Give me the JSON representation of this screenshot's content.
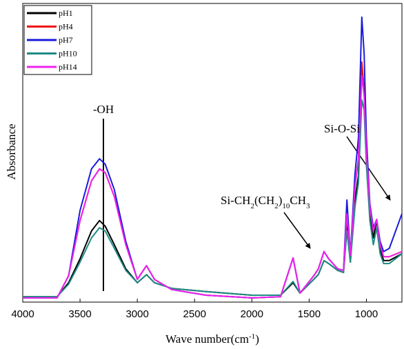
{
  "chart_data": {
    "type": "line",
    "x_label_parts": [
      "Wave number(cm",
      "-1",
      ")"
    ],
    "y_label": "Absorbance",
    "xlim": [
      4000,
      690
    ],
    "ylim": [
      0,
      100
    ],
    "xticks": [
      4000,
      3500,
      3000,
      2500,
      2000,
      1500,
      1000
    ],
    "legend": "top-left",
    "annotations": [
      {
        "parts": [
          "-OH"
        ]
      },
      {
        "parts": [
          "Si-CH",
          "2",
          "(CH",
          "2",
          ")",
          "10",
          "CH",
          "3"
        ]
      },
      {
        "parts": [
          "Si-O-Si"
        ]
      }
    ],
    "x": [
      4000,
      3700,
      3600,
      3500,
      3400,
      3330,
      3280,
      3200,
      3100,
      3000,
      2920,
      2850,
      2700,
      2400,
      2000,
      1750,
      1640,
      1580,
      1460,
      1420,
      1370,
      1330,
      1250,
      1200,
      1170,
      1140,
      1100,
      1070,
      1040,
      1020,
      1000,
      970,
      940,
      910,
      880,
      850,
      800,
      690
    ],
    "series": [
      {
        "name": "pH1",
        "color": "#000000",
        "values": [
          1.8,
          1.8,
          6.5,
          14.5,
          23.8,
          27.3,
          25.4,
          19.2,
          11.1,
          6.5,
          9.2,
          6.5,
          4.6,
          3.5,
          2.3,
          2.3,
          6.5,
          3,
          7.6,
          9.2,
          13.9,
          12.9,
          10.6,
          9.9,
          26.1,
          13.4,
          34.2,
          42.3,
          79.2,
          71.1,
          48,
          29.6,
          21.5,
          27.3,
          18,
          13.9,
          13.9,
          16.2
        ]
      },
      {
        "name": "pH4",
        "color": "#ee1111",
        "values": [
          1.4,
          1.4,
          8.8,
          27.3,
          40.6,
          44.6,
          43.4,
          35.3,
          19.2,
          7.6,
          12.2,
          7.6,
          4.2,
          2.3,
          1.4,
          1.8,
          14.8,
          3,
          8.8,
          11.1,
          16.9,
          14.5,
          11.1,
          10.6,
          29.6,
          15.7,
          38.8,
          48,
          80.4,
          71.1,
          50.3,
          31.9,
          23.8,
          27.7,
          19.2,
          15.2,
          15.2,
          16.9
        ]
      },
      {
        "name": "pH7",
        "color": "#1a1adc",
        "values": [
          1.4,
          1.4,
          8.8,
          30.7,
          44.6,
          48,
          46.2,
          37.6,
          20.3,
          7.6,
          12.2,
          7.6,
          4.2,
          2.3,
          1.4,
          1.8,
          14.8,
          3,
          8.8,
          11.1,
          16.9,
          14.5,
          11.1,
          10.6,
          34.2,
          15.7,
          43,
          55,
          95.4,
          83.1,
          55,
          33,
          24.9,
          27.7,
          20.3,
          16.9,
          18,
          29.6
        ]
      },
      {
        "name": "pH10",
        "color": "#1f8a84",
        "values": [
          1.8,
          1.8,
          6,
          13.4,
          21.5,
          24.9,
          23.8,
          18,
          10.6,
          6.5,
          9.2,
          6.5,
          4.6,
          3.5,
          2.3,
          2.3,
          6.9,
          3,
          7.6,
          9.2,
          13.9,
          12.9,
          10.6,
          9.9,
          23.8,
          13.4,
          31.9,
          40,
          67.7,
          64.4,
          45.7,
          27.3,
          19.2,
          24.9,
          16.2,
          12.9,
          12.9,
          16.2
        ]
      },
      {
        "name": "pH14",
        "color": "#ee22ee",
        "values": [
          1.4,
          1.4,
          8.8,
          27.3,
          40.6,
          44.6,
          43.4,
          35.3,
          19.2,
          7.6,
          12.2,
          7.6,
          4.2,
          2.3,
          1.4,
          1.8,
          14.8,
          3,
          8.8,
          11.1,
          16.9,
          14.5,
          11.1,
          10.6,
          29.6,
          15.7,
          38.8,
          48,
          75.8,
          69.1,
          50.3,
          31.9,
          23.8,
          27.7,
          19.2,
          15.2,
          15.2,
          16.9
        ]
      }
    ]
  }
}
